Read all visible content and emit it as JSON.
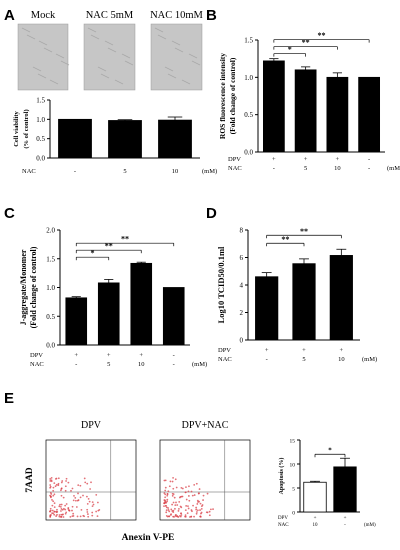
{
  "chart_data": [
    {
      "panel": "A",
      "type": "bar",
      "image_labels": [
        "Mock",
        "NAC 5mM",
        "NAC 10mM"
      ],
      "ylabel": "Cell viability (% of control)",
      "ylim": [
        0,
        1.5
      ],
      "yticks": [
        "0.0",
        "0.5",
        "1.0",
        "1.5"
      ],
      "row_labels": [
        "NAC"
      ],
      "rows": [
        [
          "-",
          "5",
          "10"
        ]
      ],
      "unit": "(mM)",
      "values": [
        1.0,
        0.97,
        0.98
      ],
      "errors": [
        0.0,
        0.02,
        0.08
      ],
      "significance": []
    },
    {
      "panel": "B",
      "type": "bar",
      "ylabel": "ROS fluorescence intensity (Fold change of control)",
      "ylim": [
        0,
        1.5
      ],
      "yticks": [
        "0.0",
        "0.5",
        "1.0",
        "1.5"
      ],
      "row_labels": [
        "DPV",
        "NAC"
      ],
      "rows": [
        [
          "+",
          "+",
          "+",
          "-"
        ],
        [
          "-",
          "5",
          "10",
          "-"
        ]
      ],
      "unit": "(mM)",
      "values": [
        1.22,
        1.1,
        1.0,
        1.0
      ],
      "errors": [
        0.03,
        0.04,
        0.06,
        0.0
      ],
      "significance": [
        {
          "from": 0,
          "to": 1,
          "label": "*"
        },
        {
          "from": 0,
          "to": 2,
          "label": "**"
        },
        {
          "from": 0,
          "to": 3,
          "label": "**"
        }
      ]
    },
    {
      "panel": "C",
      "type": "bar",
      "ylabel": "J-aggregate/Monomer (Fold change of control)",
      "ylim": [
        0,
        2.0
      ],
      "yticks": [
        "0.0",
        "0.5",
        "1.0",
        "1.5",
        "2.0"
      ],
      "row_labels": [
        "DPV",
        "NAC"
      ],
      "rows": [
        [
          "+",
          "+",
          "+",
          "-"
        ],
        [
          "-",
          "5",
          "10",
          "-"
        ]
      ],
      "unit": "(mM)",
      "values": [
        0.82,
        1.08,
        1.42,
        1.0
      ],
      "errors": [
        0.02,
        0.06,
        0.02,
        0.0
      ],
      "significance": [
        {
          "from": 0,
          "to": 1,
          "label": "*"
        },
        {
          "from": 0,
          "to": 2,
          "label": "**"
        },
        {
          "from": 0,
          "to": 3,
          "label": "**"
        }
      ]
    },
    {
      "panel": "D",
      "type": "bar",
      "ylabel": "Log10 TCID50/0.1ml",
      "ylim": [
        0,
        8
      ],
      "yticks": [
        "0",
        "2",
        "4",
        "6",
        "8"
      ],
      "row_labels": [
        "DPV",
        "NAC"
      ],
      "rows": [
        [
          "+",
          "+",
          "+"
        ],
        [
          "-",
          "5",
          "10"
        ]
      ],
      "unit": "(mM)",
      "values": [
        4.6,
        5.55,
        6.15
      ],
      "errors": [
        0.3,
        0.35,
        0.45
      ],
      "significance": [
        {
          "from": 0,
          "to": 1,
          "label": "**"
        },
        {
          "from": 0,
          "to": 2,
          "label": "**"
        }
      ]
    },
    {
      "panel": "E",
      "type": "bar",
      "flow_titles": [
        "DPV",
        "DPV+NAC"
      ],
      "flow_xlabel": "Anexin V-PE",
      "flow_ylabel": "7AAD",
      "ylabel": "Apoptosis (%)",
      "ylim": [
        0,
        15
      ],
      "yticks": [
        "0",
        "5",
        "10",
        "15"
      ],
      "row_labels": [
        "DPV",
        "NAC"
      ],
      "rows": [
        [
          "+",
          "+"
        ],
        [
          "10",
          "-"
        ]
      ],
      "unit": "(mM)",
      "values": [
        6.2,
        9.4
      ],
      "errors": [
        0.2,
        1.8
      ],
      "bar_fills": [
        "#ffffff",
        "#000000"
      ],
      "significance": [
        {
          "from": 0,
          "to": 1,
          "label": "*"
        }
      ]
    }
  ],
  "colors": {
    "bar": "#000000",
    "dots": "#d9424a",
    "micrograph": "#c6c6c6"
  }
}
